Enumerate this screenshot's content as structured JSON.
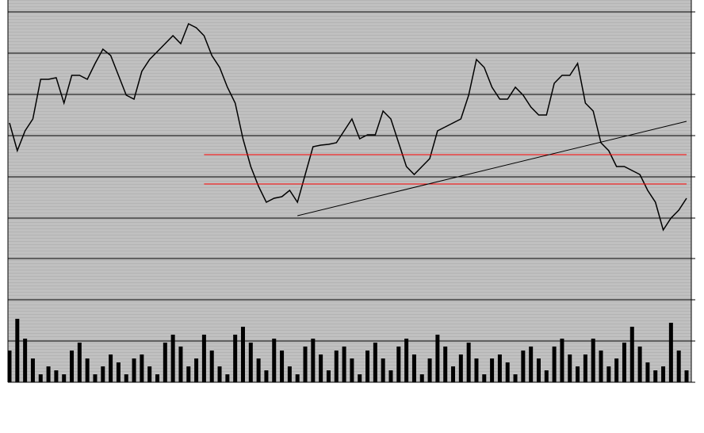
{
  "chart_data": {
    "type": "line",
    "categories": [
      null,
      null,
      null,
      null,
      null,
      null,
      null,
      null,
      null,
      null,
      null,
      null,
      null,
      null,
      null,
      null,
      null,
      null,
      null,
      null,
      null,
      null,
      null,
      null,
      null,
      null,
      null,
      null,
      null,
      null,
      null,
      null,
      null,
      null,
      null,
      null,
      null,
      null,
      null,
      null,
      null,
      null,
      null,
      null,
      null,
      null,
      null,
      null,
      null,
      null,
      null,
      null,
      null,
      null,
      null,
      null,
      null,
      null,
      null,
      null,
      null,
      null,
      null,
      null,
      null,
      null,
      null,
      null,
      null,
      null,
      null,
      null,
      null,
      null,
      null,
      null,
      null,
      null,
      null,
      null,
      null,
      null,
      null,
      null,
      null,
      null,
      null,
      null
    ],
    "series": [
      {
        "color": "#000000",
        "values": [
          327,
          292,
          317,
          332,
          382,
          382,
          384,
          352,
          387,
          387,
          382,
          402,
          420,
          412,
          387,
          362,
          357,
          392,
          407,
          417,
          427,
          437,
          427,
          452,
          447,
          437,
          412,
          397,
          372,
          352,
          307,
          272,
          247,
          227,
          232,
          234,
          242,
          227,
          262,
          297,
          299,
          300,
          302,
          317,
          332,
          307,
          312,
          312,
          342,
          332,
          302,
          272,
          262,
          272,
          282,
          317,
          322,
          327,
          332,
          362,
          407,
          397,
          372,
          357,
          357,
          372,
          362,
          347,
          337,
          337,
          377,
          387,
          387,
          402,
          352,
          342,
          302,
          292,
          272,
          272,
          267,
          262,
          242,
          227,
          192,
          207,
          217,
          232
        ]
      },
      {
        "color": "#000000",
        "kind": "volume",
        "values": [
          40,
          80,
          55,
          30,
          10,
          20,
          15,
          10,
          40,
          50,
          30,
          10,
          20,
          35,
          25,
          10,
          30,
          35,
          20,
          10,
          50,
          60,
          45,
          20,
          30,
          60,
          40,
          20,
          10,
          60,
          70,
          50,
          30,
          15,
          55,
          40,
          20,
          10,
          45,
          55,
          35,
          15,
          40,
          45,
          30,
          10,
          40,
          50,
          30,
          15,
          45,
          55,
          35,
          10,
          30,
          60,
          45,
          20,
          35,
          50,
          30,
          10,
          30,
          35,
          25,
          10,
          40,
          45,
          30,
          15,
          45,
          55,
          35,
          20,
          35,
          55,
          40,
          20,
          30,
          50,
          70,
          45,
          25,
          15,
          20,
          75,
          40,
          15
        ]
      }
    ],
    "lines": [
      {
        "color": "#ff0000",
        "x": [
          25,
          87
        ],
        "y": [
          287,
          287
        ]
      },
      {
        "color": "#ff0000",
        "x": [
          25,
          87
        ],
        "y": [
          250,
          250
        ]
      },
      {
        "color": "#000000",
        "x": [
          37,
          87
        ],
        "y": [
          210,
          329
        ]
      }
    ],
    "xlim": [
      0,
      87
    ],
    "ylim": [
      0,
      482
    ],
    "yticks": [
      0,
      52,
      104,
      156,
      207,
      259,
      311,
      363,
      415,
      467
    ],
    "grid": true
  }
}
